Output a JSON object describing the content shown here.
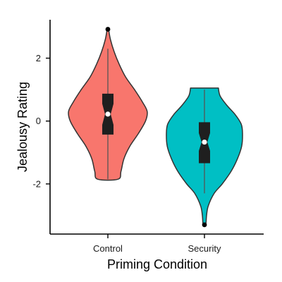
{
  "chart_data": {
    "type": "violin",
    "xlabel": "Priming Condition",
    "ylabel": "Jealousy Rating",
    "categories": [
      "Control",
      "Security"
    ],
    "ylim": [
      -3.55,
      3.2
    ],
    "yticks": [
      -2,
      0,
      2
    ],
    "ytick_labels": [
      "-2",
      "0",
      "2"
    ],
    "grid": false,
    "series": [
      {
        "category": "Control",
        "color": "#F8766D",
        "min": -1.85,
        "max": 2.9,
        "q1": -0.42,
        "median": 0.22,
        "q3": 0.86,
        "notch_low": -0.12,
        "notch_high": 0.55,
        "whisker_low": -1.85,
        "whisker_high": 2.3,
        "outliers": [
          2.92
        ],
        "density": [
          [
            -1.85,
            0.24
          ],
          [
            -1.6,
            0.31
          ],
          [
            -1.2,
            0.38
          ],
          [
            -0.8,
            0.52
          ],
          [
            -0.4,
            0.72
          ],
          [
            0.0,
            0.89
          ],
          [
            0.3,
            0.93
          ],
          [
            0.6,
            0.82
          ],
          [
            1.0,
            0.63
          ],
          [
            1.4,
            0.42
          ],
          [
            1.8,
            0.27
          ],
          [
            2.2,
            0.15
          ],
          [
            2.6,
            0.06
          ],
          [
            2.9,
            0.02
          ]
        ]
      },
      {
        "category": "Security",
        "color": "#00BFC4",
        "min": -3.3,
        "max": 1.05,
        "q1": -1.33,
        "median": -0.67,
        "q3": -0.05,
        "notch_low": -0.95,
        "notch_high": -0.38,
        "whisker_low": -2.3,
        "whisker_high": 1.0,
        "outliers": [
          -3.3
        ],
        "density": [
          [
            -3.3,
            0.03
          ],
          [
            -3.0,
            0.05
          ],
          [
            -2.7,
            0.09
          ],
          [
            -2.3,
            0.23
          ],
          [
            -2.0,
            0.42
          ],
          [
            -1.6,
            0.63
          ],
          [
            -1.2,
            0.78
          ],
          [
            -0.8,
            0.88
          ],
          [
            -0.4,
            0.9
          ],
          [
            -0.1,
            0.87
          ],
          [
            0.2,
            0.73
          ],
          [
            0.5,
            0.53
          ],
          [
            0.8,
            0.37
          ],
          [
            1.05,
            0.33
          ]
        ]
      }
    ]
  }
}
